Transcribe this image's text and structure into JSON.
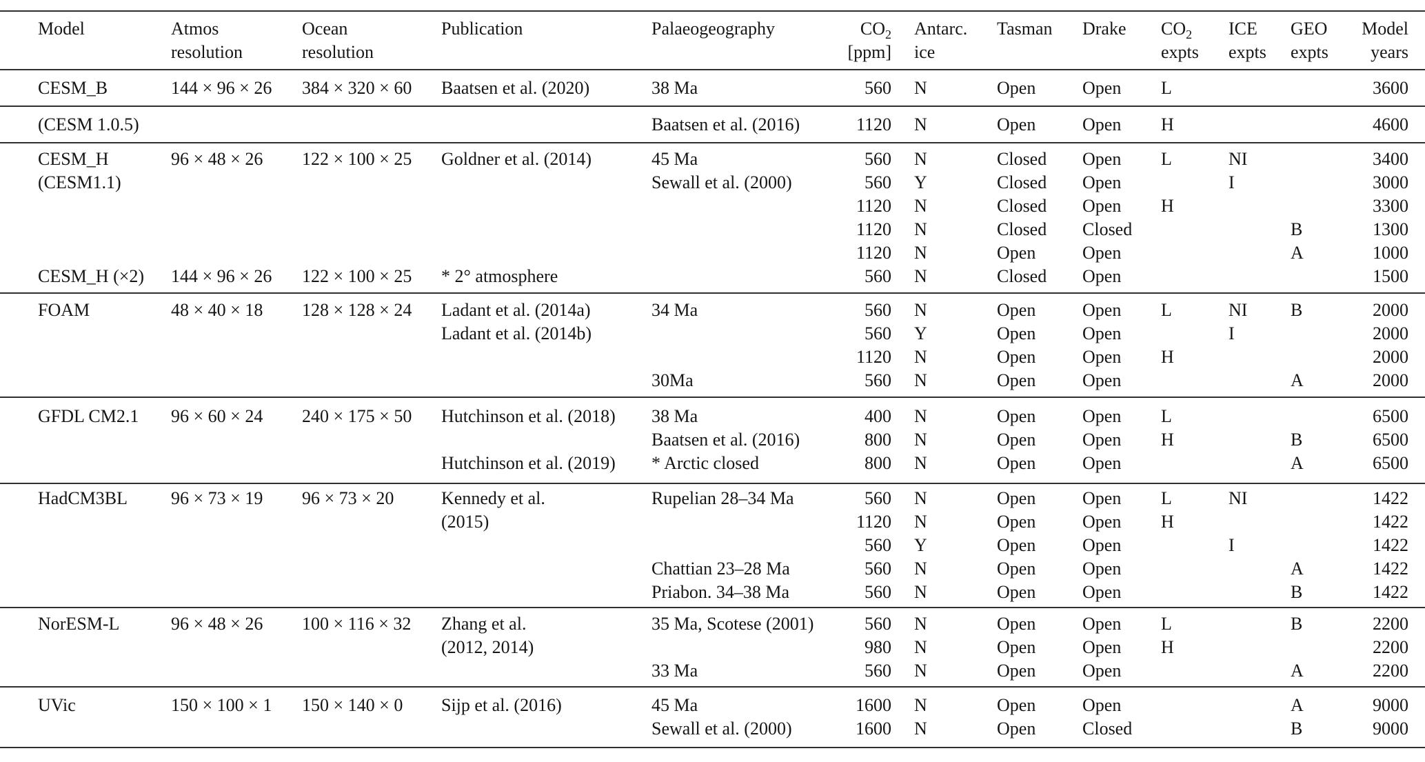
{
  "table": {
    "columns": [
      {
        "h1": "Model",
        "h1_sub": "",
        "h2": ""
      },
      {
        "h1": "Atmos",
        "h1_sub": "",
        "h2": "resolution"
      },
      {
        "h1": "Ocean",
        "h1_sub": "",
        "h2": "resolution"
      },
      {
        "h1": "Publication",
        "h1_sub": "",
        "h2": ""
      },
      {
        "h1": "Palaeogeography",
        "h1_sub": "",
        "h2": ""
      },
      {
        "h1": "CO",
        "h1_sub": "2",
        "h2": "[ppm]"
      },
      {
        "h1": "Antarc.",
        "h1_sub": "",
        "h2": "ice"
      },
      {
        "h1": "Tasman",
        "h1_sub": "",
        "h2": ""
      },
      {
        "h1": "Drake",
        "h1_sub": "",
        "h2": ""
      },
      {
        "h1": "CO",
        "h1_sub": "2",
        "h2": "expts"
      },
      {
        "h1": "ICE",
        "h1_sub": "",
        "h2": "expts"
      },
      {
        "h1": "GEO",
        "h1_sub": "",
        "h2": "expts"
      },
      {
        "h1": "Model",
        "h1_sub": "",
        "h2": "years"
      }
    ],
    "sections": [
      {
        "rows": [
          [
            "CESM_B",
            "144 × 96 × 26",
            "384 × 320 × 60",
            "Baatsen et al. (2020)",
            "38 Ma",
            "560",
            "N",
            "Open",
            "Open",
            "L",
            "",
            "",
            "3600"
          ]
        ]
      },
      {
        "rows": [
          [
            "(CESM 1.0.5)",
            "",
            "",
            "",
            "Baatsen et al. (2016)",
            "1120",
            "N",
            "Open",
            "Open",
            "H",
            "",
            "",
            "4600"
          ]
        ]
      },
      {
        "rows": [
          [
            "CESM_H",
            "96 × 48 × 26",
            "122 × 100 × 25",
            "Goldner et al. (2014)",
            "45 Ma",
            "560",
            "N",
            "Closed",
            "Open",
            "L",
            "NI",
            "",
            "3400"
          ],
          [
            "(CESM1.1)",
            "",
            "",
            "",
            "Sewall et al. (2000)",
            "560",
            "Y",
            "Closed",
            "Open",
            "",
            "I",
            "",
            "3000"
          ],
          [
            "",
            "",
            "",
            "",
            "",
            "1120",
            "N",
            "Closed",
            "Open",
            "H",
            "",
            "",
            "3300"
          ],
          [
            "",
            "",
            "",
            "",
            "",
            "1120",
            "N",
            "Closed",
            "Closed",
            "",
            "",
            "B",
            "1300"
          ],
          [
            "",
            "",
            "",
            "",
            "",
            "1120",
            "N",
            "Open",
            "Open",
            "",
            "",
            "A",
            "1000"
          ],
          [
            "CESM_H (×2)",
            "144 × 96 × 26",
            "122 × 100 × 25",
            "* 2° atmosphere",
            "",
            "560",
            "N",
            "Closed",
            "Open",
            "",
            "",
            "",
            "1500"
          ]
        ]
      },
      {
        "rows": [
          [
            "FOAM",
            "48 × 40 × 18",
            "128 × 128 × 24",
            "Ladant et al. (2014a)",
            "34 Ma",
            "560",
            "N",
            "Open",
            "Open",
            "L",
            "NI",
            "B",
            "2000"
          ],
          [
            "",
            "",
            "",
            "Ladant et al. (2014b)",
            "",
            "560",
            "Y",
            "Open",
            "Open",
            "",
            "I",
            "",
            "2000"
          ],
          [
            "",
            "",
            "",
            "",
            "",
            "1120",
            "N",
            "Open",
            "Open",
            "H",
            "",
            "",
            "2000"
          ],
          [
            "",
            "",
            "",
            "",
            "30Ma",
            "560",
            "N",
            "Open",
            "Open",
            "",
            "",
            "A",
            "2000"
          ]
        ]
      },
      {
        "rows": [
          [
            "GFDL CM2.1",
            "96 × 60 × 24",
            "240 × 175 × 50",
            "Hutchinson et al. (2018)",
            "38 Ma",
            "400",
            "N",
            "Open",
            "Open",
            "L",
            "",
            "",
            "6500"
          ],
          [
            "",
            "",
            "",
            "",
            "Baatsen et al. (2016)",
            "800",
            "N",
            "Open",
            "Open",
            "H",
            "",
            "B",
            "6500"
          ],
          [
            "",
            "",
            "",
            "Hutchinson et al. (2019)",
            "* Arctic closed",
            "800",
            "N",
            "Open",
            "Open",
            "",
            "",
            "A",
            "6500"
          ]
        ]
      },
      {
        "rows": [
          [
            "HadCM3BL",
            "96 × 73 × 19",
            "96 × 73 × 20",
            "Kennedy et al.",
            "Rupelian 28–34 Ma",
            "560",
            "N",
            "Open",
            "Open",
            "L",
            "NI",
            "",
            "1422"
          ],
          [
            "",
            "",
            "",
            "(2015)",
            "",
            "1120",
            "N",
            "Open",
            "Open",
            "H",
            "",
            "",
            "1422"
          ],
          [
            "",
            "",
            "",
            "",
            "",
            "560",
            "Y",
            "Open",
            "Open",
            "",
            "I",
            "",
            "1422"
          ],
          [
            "",
            "",
            "",
            "",
            "Chattian 23–28 Ma",
            "560",
            "N",
            "Open",
            "Open",
            "",
            "",
            "A",
            "1422"
          ],
          [
            "",
            "",
            "",
            "",
            "Priabon. 34–38 Ma",
            "560",
            "N",
            "Open",
            "Open",
            "",
            "",
            "B",
            "1422"
          ]
        ]
      },
      {
        "rows": [
          [
            "NorESM-L",
            "96 × 48 × 26",
            "100 × 116 × 32",
            "Zhang et al.",
            "35 Ma, Scotese (2001)",
            "560",
            "N",
            "Open",
            "Open",
            "L",
            "",
            "B",
            "2200"
          ],
          [
            "",
            "",
            "",
            "(2012, 2014)",
            "",
            "980",
            "N",
            "Open",
            "Open",
            "H",
            "",
            "",
            "2200"
          ],
          [
            "",
            "",
            "",
            "",
            "33 Ma",
            "560",
            "N",
            "Open",
            "Open",
            "",
            "",
            "A",
            "2200"
          ]
        ]
      },
      {
        "rows": [
          [
            "UVic",
            "150 × 100 × 1",
            "150 × 140 × 0",
            "Sijp et al. (2016)",
            "45 Ma",
            "1600",
            "N",
            "Open",
            "Open",
            "",
            "",
            "A",
            "9000"
          ],
          [
            "",
            "",
            "",
            "",
            "Sewall et al. (2000)",
            "1600",
            "N",
            "Open",
            "Closed",
            "",
            "",
            "B",
            "9000"
          ]
        ]
      }
    ]
  }
}
